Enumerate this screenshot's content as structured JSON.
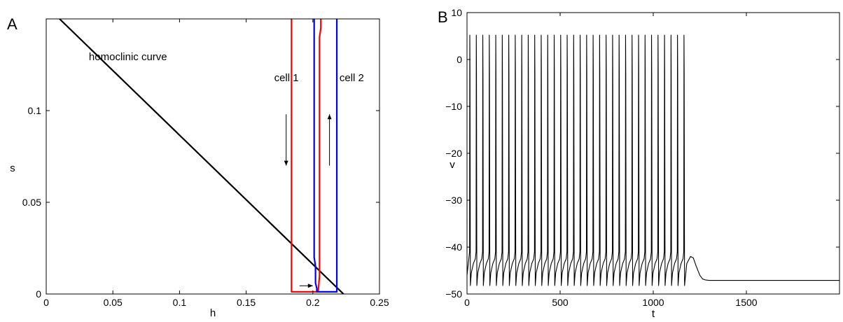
{
  "chart_data": [
    {
      "type": "line",
      "panel_label": "A",
      "xlabel": "h",
      "ylabel": "s",
      "xlim": [
        0,
        0.25
      ],
      "ylim": [
        0,
        0.15
      ],
      "xticks": [
        0,
        0.05,
        0.1,
        0.15,
        0.2,
        0.25
      ],
      "xtick_labels": [
        "0",
        "0.05",
        "0.1",
        "0.15",
        "0.2",
        "0.25"
      ],
      "yticks": [
        0,
        0.05,
        0.1
      ],
      "ytick_labels": [
        "0",
        "0.05",
        "0.1"
      ],
      "grid": false,
      "series": [
        {
          "name": "homoclinic curve",
          "color": "#000000",
          "x": [
            0.01,
            0.223
          ],
          "y": [
            0.15,
            0.0
          ]
        },
        {
          "name": "cell 1",
          "color": "#ff0000",
          "x": [
            0.184,
            0.184,
            0.204,
            0.205,
            0.205,
            0.206,
            0.206
          ],
          "y": [
            0.15,
            0.0012,
            0.0012,
            0.01,
            0.14,
            0.145,
            0.15
          ]
        },
        {
          "name": "cell 2",
          "color": "#0000ff",
          "x": [
            0.201,
            0.201,
            0.202,
            0.202,
            0.203,
            0.203,
            0.218,
            0.218
          ],
          "y": [
            0.15,
            0.02,
            0.015,
            0.006,
            0.003,
            0.0012,
            0.0012,
            0.15
          ]
        }
      ],
      "annotations": [
        {
          "text": "homoclinic curve",
          "x": 0.032,
          "y": 0.1275
        },
        {
          "text": "cell 1",
          "x": 0.171,
          "y": 0.116
        },
        {
          "text": "cell 2",
          "x": 0.22,
          "y": 0.116
        }
      ],
      "arrows": [
        {
          "from": [
            0.18,
            0.098
          ],
          "to": [
            0.18,
            0.07
          ]
        },
        {
          "from": [
            0.2125,
            0.07
          ],
          "to": [
            0.2125,
            0.098
          ]
        },
        {
          "from": [
            0.19,
            0.0045
          ],
          "to": [
            0.2,
            0.0045
          ]
        }
      ]
    },
    {
      "type": "line",
      "panel_label": "B",
      "xlabel": "t",
      "ylabel": "v",
      "xlim": [
        0,
        2000
      ],
      "ylim": [
        -50,
        10
      ],
      "xticks": [
        0,
        500,
        1000,
        1500
      ],
      "xtick_labels": [
        "0",
        "500",
        "1000",
        "1500"
      ],
      "yticks": [
        -50,
        -40,
        -30,
        -20,
        -10,
        0,
        10
      ],
      "ytick_labels": [
        "−50",
        "−40",
        "−30",
        "−20",
        "−10",
        "0",
        "10"
      ],
      "grid": false,
      "series": [
        {
          "name": "",
          "color": "#000000",
          "spike_train": {
            "first_spike": 15,
            "last_spike": 1165,
            "count": 34,
            "peak": 5.2,
            "trough": -48.2,
            "shoulder": -42
          },
          "tail": {
            "x": [
              1165,
              1180,
              1200,
              1215,
              1230,
              1250,
              1265,
              1280,
              1300,
              1350,
              2000
            ],
            "y": [
              -48.2,
              -43.5,
              -42.0,
              -42.3,
              -44.0,
              -46.0,
              -46.8,
              -47.0,
              -47.1,
              -47.1,
              -47.1
            ]
          }
        }
      ]
    }
  ]
}
